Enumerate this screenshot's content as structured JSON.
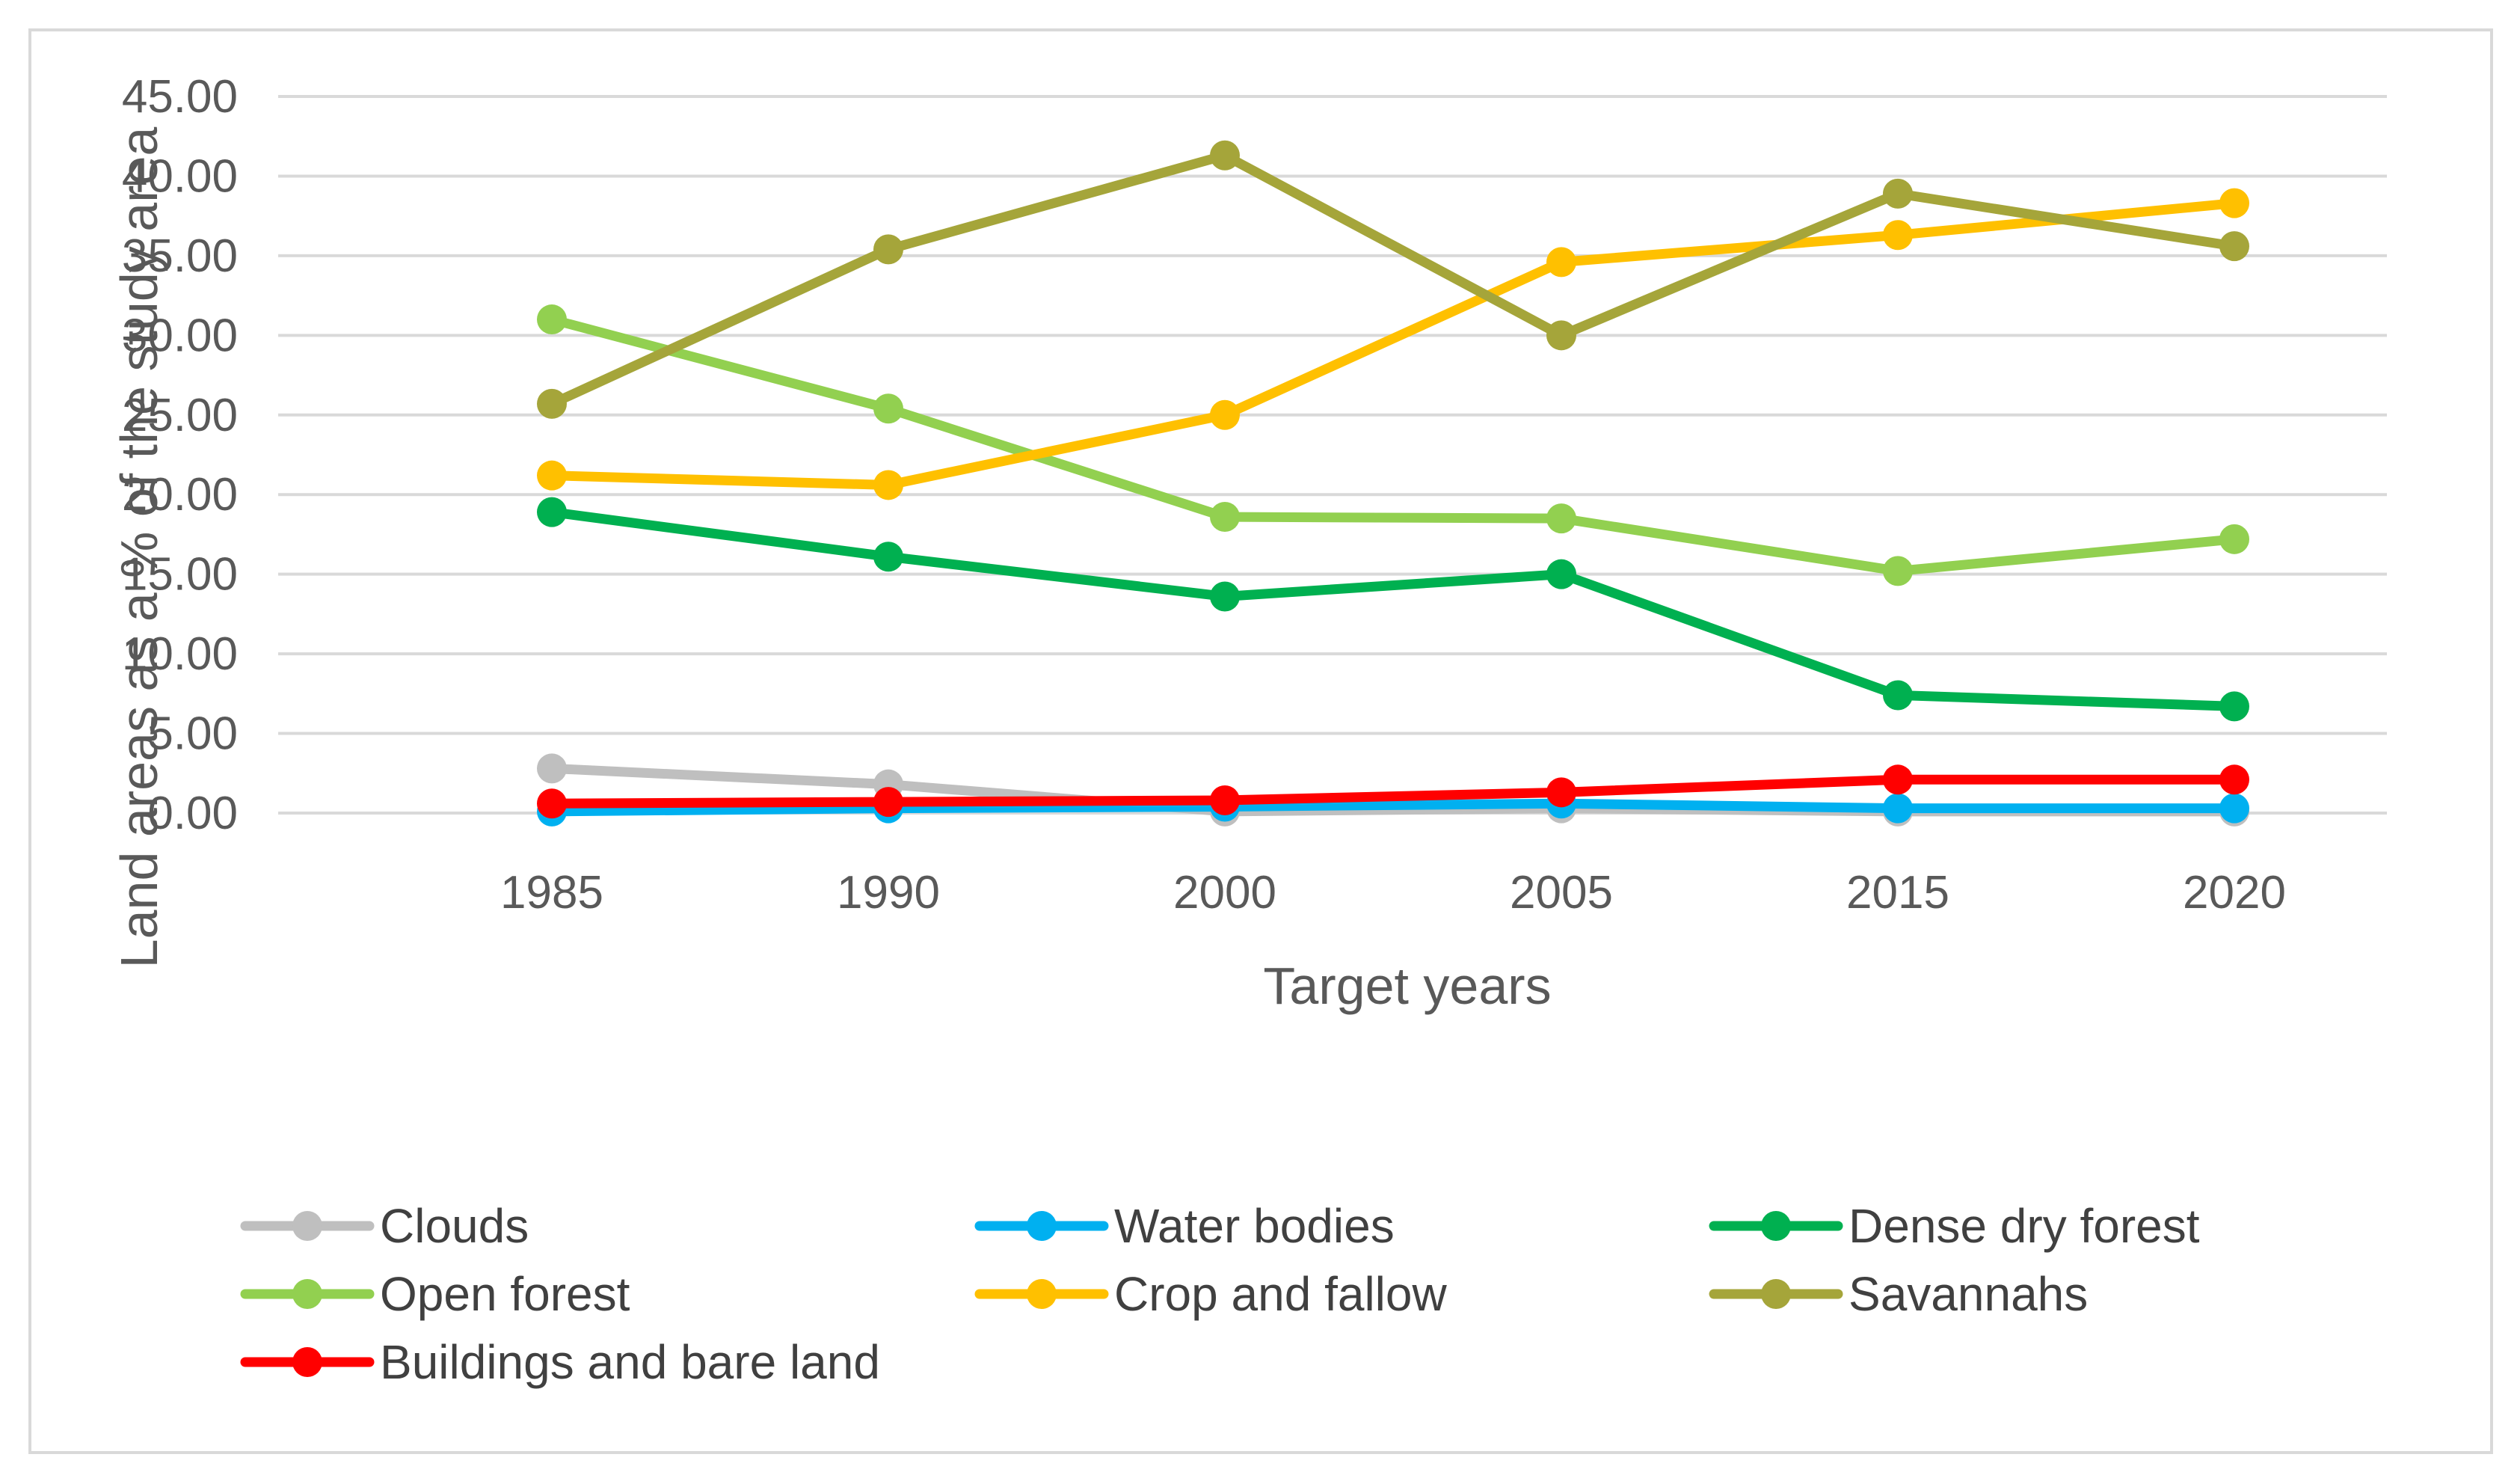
{
  "chart_data": {
    "type": "line",
    "title": "",
    "xlabel": "Target years",
    "ylabel": "Land areas as a % of the study area",
    "categories": [
      "1985",
      "1990",
      "2000",
      "2005",
      "2015",
      "2020"
    ],
    "ylim": [
      0,
      45
    ],
    "yticks": [
      0,
      5,
      10,
      15,
      20,
      25,
      30,
      35,
      40,
      45
    ],
    "ytick_labels": [
      "0.00",
      "5.00",
      "10.00",
      "15.00",
      "20.00",
      "25.00",
      "30.00",
      "35.00",
      "40.00",
      "45.00"
    ],
    "grid": true,
    "legend_position": "bottom",
    "series": [
      {
        "name": "Clouds",
        "color": "#bfbfbf",
        "values": [
          2.8,
          1.8,
          0.1,
          0.3,
          0.1,
          0.1
        ]
      },
      {
        "name": "Water bodies",
        "color": "#00b0f0",
        "values": [
          0.1,
          0.3,
          0.4,
          0.6,
          0.3,
          0.3
        ]
      },
      {
        "name": "Dense dry forest",
        "color": "#00b050",
        "values": [
          18.9,
          16.1,
          13.6,
          15.0,
          7.4,
          6.7
        ]
      },
      {
        "name": "Open forest",
        "color": "#92d050",
        "values": [
          31.0,
          25.4,
          18.6,
          18.5,
          15.2,
          17.2
        ]
      },
      {
        "name": "Crop and fallow",
        "color": "#ffc000",
        "values": [
          21.2,
          20.6,
          25.0,
          34.6,
          36.3,
          38.3
        ]
      },
      {
        "name": "Savannahs",
        "color": "#a5a53a",
        "values": [
          25.7,
          35.4,
          41.3,
          30.0,
          38.9,
          35.6
        ]
      },
      {
        "name": "Buildings and bare land",
        "color": "#ff0000",
        "values": [
          0.6,
          0.7,
          0.8,
          1.3,
          2.1,
          2.1
        ]
      }
    ]
  }
}
